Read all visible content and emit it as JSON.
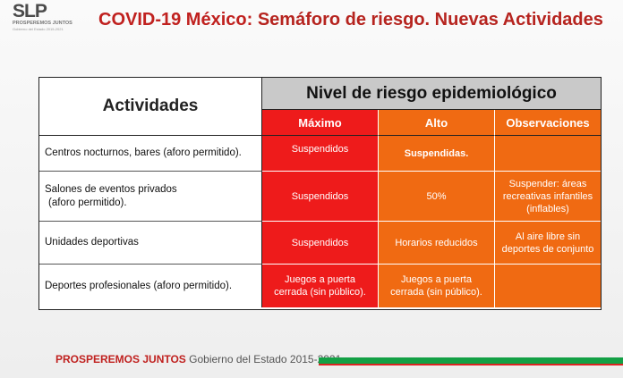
{
  "logo": {
    "mark": "SLP",
    "line1": "PROSPEREMOS JUNTOS",
    "line2": "Gobierno del Estado 2015-2021"
  },
  "title": {
    "part1": "COVID-19 México:",
    "part2": "Semáforo de riesgo. Nuevas Actividades"
  },
  "table": {
    "header_activities": "Actividades",
    "header_level": "Nivel de riesgo epidemiológico",
    "header_max": "Máximo",
    "header_alto": "Alto",
    "header_obs": "Observaciones",
    "rows": [
      {
        "actividad": "Centros nocturnos, bares (aforo permitido).",
        "maximo": "Suspendidos",
        "alto": "Suspendidas.",
        "observaciones": ""
      },
      {
        "actividad_line1": "Salones de eventos privados",
        "actividad_line2": "(aforo permitido).",
        "maximo": "Suspendidos",
        "alto": "50%",
        "observaciones_line1": "Suspender: áreas",
        "observaciones_line2": "recreativas infantiles",
        "observaciones_line3": "(inflables)"
      },
      {
        "actividad": "Unidades deportivas",
        "maximo": "Suspendidos",
        "alto": "Horarios reducidos",
        "observaciones_line1": "Al aire libre sin",
        "observaciones_line2": "deportes de conjunto"
      },
      {
        "actividad": "Deportes profesionales (aforo permitido).",
        "maximo_line1": "Juegos a puerta",
        "maximo_line2": "cerrada (sin público).",
        "alto_line1": "Juegos a puerta",
        "alto_line2": "cerrada (sin público).",
        "observaciones": ""
      }
    ]
  },
  "footer": {
    "brand": "PROSPEREMOS JUNTOS",
    "government": "Gobierno del Estado 2015-2021"
  },
  "colors": {
    "max_red": "#ee1b1b",
    "alto_orange": "#f06a12",
    "header_gray": "#c9c9c9",
    "title_red": "#c0211f",
    "footer_green": "#13a045"
  }
}
